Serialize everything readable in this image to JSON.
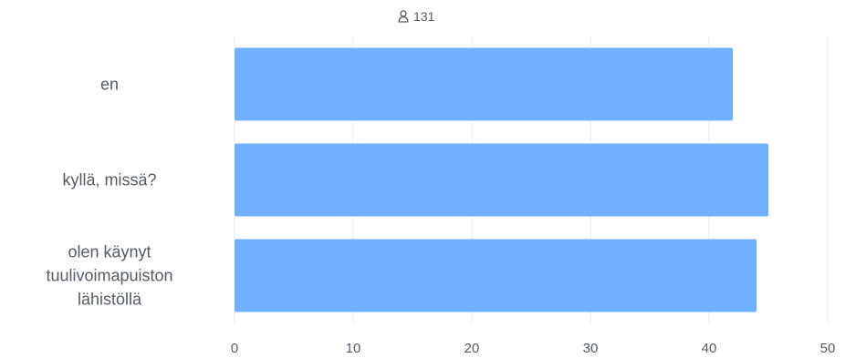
{
  "respondents": {
    "icon": "person-icon",
    "count": "131"
  },
  "chart_data": {
    "type": "bar",
    "orientation": "horizontal",
    "categories": [
      [
        "en"
      ],
      [
        "kyllä, missä?"
      ],
      [
        "olen käynyt",
        "tuulivoimapuiston",
        "lähistöllä"
      ]
    ],
    "values": [
      42,
      45,
      44
    ],
    "xlim": [
      0,
      50
    ],
    "xticks": [
      0,
      10,
      20,
      30,
      40,
      50
    ],
    "grid": true,
    "bar_color": "#70b0ff",
    "title": "",
    "xlabel": "",
    "ylabel": ""
  }
}
